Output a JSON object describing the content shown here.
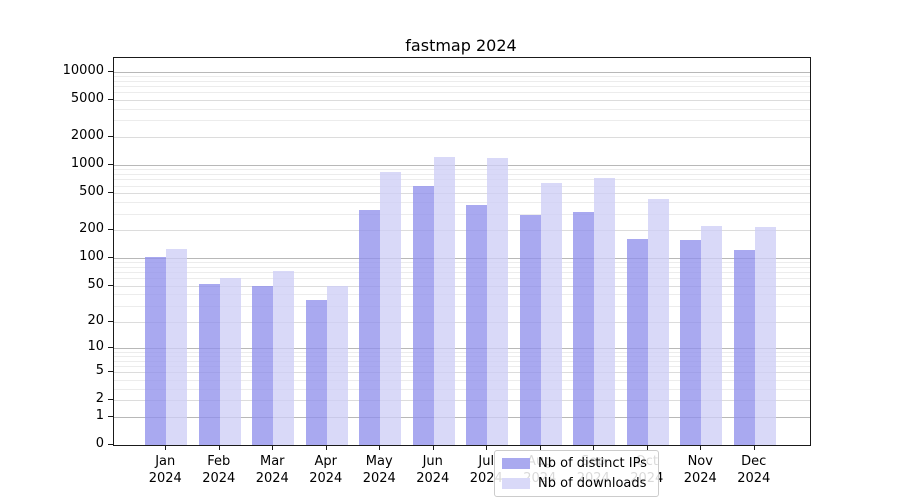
{
  "title": "fastmap 2024",
  "colors": {
    "ips": "#a9a9ef",
    "downloads": "#d9d9f8",
    "ips_fill": "rgba(145,145,236,0.78)",
    "downloads_fill": "rgba(206,206,246,0.78)"
  },
  "legend": {
    "items": [
      {
        "label": "Nb of distinct IPs",
        "series": "ips"
      },
      {
        "label": "Nb of downloads",
        "series": "downloads"
      }
    ]
  },
  "chart_data": {
    "type": "bar",
    "title": "fastmap 2024",
    "categories": [
      "Jan 2024",
      "Feb 2024",
      "Mar 2024",
      "Apr 2024",
      "May 2024",
      "Jun 2024",
      "Jul 2024",
      "Aug 2024",
      "Sep 2024",
      "Oct 2024",
      "Nov 2024",
      "Dec 2024"
    ],
    "series": [
      {
        "name": "Nb of distinct IPs",
        "key": "ips",
        "values": [
          103,
          52,
          49,
          35,
          330,
          597,
          372,
          287,
          310,
          160,
          156,
          122
        ]
      },
      {
        "name": "Nb of downloads",
        "key": "downloads",
        "values": [
          126,
          60,
          73,
          50,
          835,
          1230,
          1180,
          648,
          730,
          427,
          221,
          214
        ]
      }
    ],
    "xlabel": "",
    "ylabel": "",
    "yscale": "log1p",
    "yticks": [
      0,
      1,
      2,
      5,
      10,
      20,
      50,
      100,
      200,
      500,
      1000,
      2000,
      5000,
      10000
    ],
    "ylim": [
      0,
      14000
    ],
    "grid": true,
    "legend_position": "lower center"
  }
}
